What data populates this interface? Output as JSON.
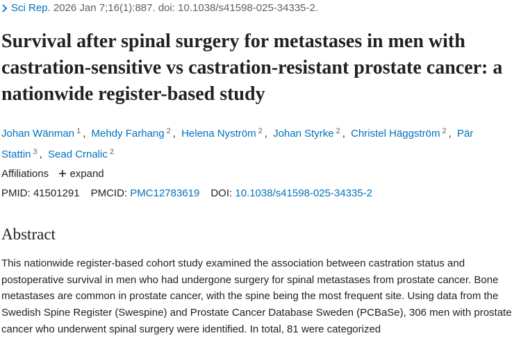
{
  "citation": {
    "journal": "Sci Rep.",
    "details": "2026 Jan 7;16(1):887. doi: 10.1038/s41598-025-34335-2."
  },
  "title": "Survival after spinal surgery for metastases in men with castration-sensitive vs castration-resistant prostate cancer: a nationwide register-based study",
  "authors": [
    {
      "name": "Johan Wänman",
      "affiliation": "1"
    },
    {
      "name": "Mehdy Farhang",
      "affiliation": "2"
    },
    {
      "name": "Helena Nyström",
      "affiliation": "2"
    },
    {
      "name": "Johan Styrke",
      "affiliation": "2"
    },
    {
      "name": "Christel Häggström",
      "affiliation": "2"
    },
    {
      "name": "Pär Stattin",
      "affiliation": "3"
    },
    {
      "name": "Sead Crnalic",
      "affiliation": "2"
    }
  ],
  "affiliations": {
    "label": "Affiliations",
    "toggle": "expand"
  },
  "identifiers": [
    {
      "label": "PMID:",
      "value": "41501291"
    },
    {
      "label": "PMCID:",
      "value": "PMC12783619"
    },
    {
      "label": "DOI:",
      "value": "10.1038/s41598-025-34335-2"
    }
  ],
  "abstract": {
    "heading": "Abstract",
    "text": "This nationwide register-based cohort study examined the association between castration status and postoperative survival in men who had undergone surgery for spinal metastases from prostate cancer. Bone metastases are common in prostate cancer, with the spine being the most frequent site. Using data from the Swedish Spine Register (Swespine) and Prostate Cancer Database Sweden (PCBaSe), 306 men with prostate cancer who underwent spinal surgery were identified. In total, 81 were categorized"
  }
}
